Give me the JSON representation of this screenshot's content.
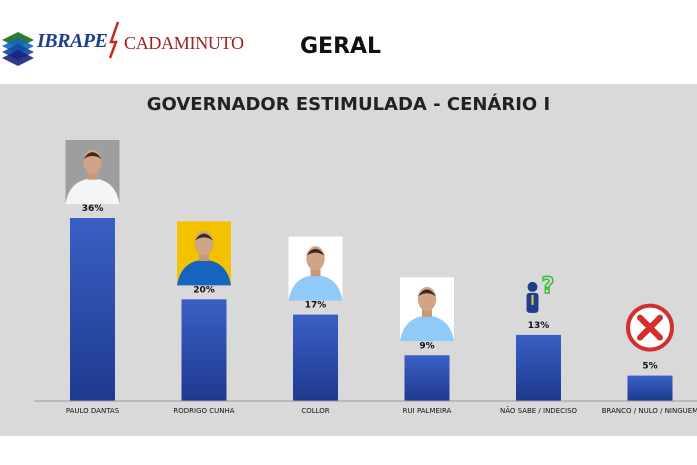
{
  "header": {
    "brand_a": "IBRAPE",
    "brand_b": "CADAMINUTO",
    "page_title": "GERAL"
  },
  "colors": {
    "panel_bg": "#d9d9d9",
    "bar_top": "#3457b8",
    "bar_bottom": "#1e3a8f",
    "brand_blue": "#1f3e8c",
    "brand_red": "#a02020"
  },
  "chart_data": {
    "type": "bar",
    "title": "GOVERNADOR ESTIMULADA - CENÁRIO I",
    "categories": [
      "PAULO DANTAS",
      "RODRIGO CUNHA",
      "COLLOR",
      "RUI PALMEIRA",
      "NÃO SABE / INDECISO",
      "BRANCO / NULO / NINGUEM"
    ],
    "values": [
      36,
      20,
      17,
      9,
      13,
      5
    ],
    "value_labels": [
      "36%",
      "20%",
      "17%",
      "9%",
      "13%",
      "5%"
    ],
    "ylim": [
      0,
      36
    ],
    "grid": false,
    "legend": "none",
    "icons": [
      "candidate-photo",
      "candidate-photo",
      "candidate-photo",
      "candidate-photo",
      "question-person-icon",
      "red-x-icon"
    ]
  }
}
